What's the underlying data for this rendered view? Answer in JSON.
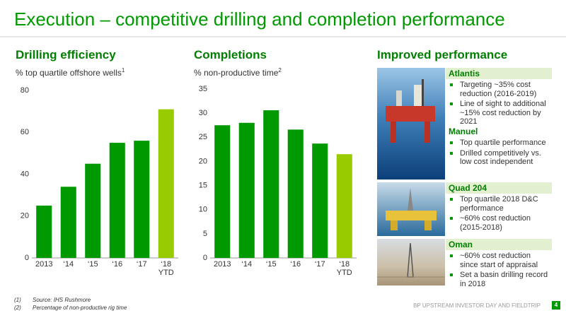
{
  "header": {
    "title": "Execution – competitive drilling and completion performance"
  },
  "chart_data": [
    {
      "type": "bar",
      "title": "Drilling efficiency",
      "subtitle": "% top quartile offshore wells",
      "subtitle_note": "1",
      "categories": [
        "2013",
        "‘14",
        "‘15",
        "‘16",
        "‘17",
        "‘18 YTD"
      ],
      "values": [
        25,
        34,
        45,
        55,
        56,
        71
      ],
      "colors": [
        "#009900",
        "#009900",
        "#009900",
        "#009900",
        "#009900",
        "#99cc00"
      ],
      "ylim": [
        0,
        80
      ],
      "yticks": [
        0,
        20,
        40,
        60,
        80
      ]
    },
    {
      "type": "bar",
      "title": "Completions",
      "subtitle": "% non-productive time",
      "subtitle_note": "2",
      "categories": [
        "2013",
        "‘14",
        "‘15",
        "‘16",
        "‘17",
        "‘18 YTD"
      ],
      "values": [
        27.5,
        28,
        30.6,
        26.6,
        23.7,
        21.5
      ],
      "colors": [
        "#009900",
        "#009900",
        "#009900",
        "#009900",
        "#009900",
        "#99cc00"
      ],
      "ylim": [
        0,
        35
      ],
      "yticks": [
        0,
        5,
        10,
        15,
        20,
        25,
        30,
        35
      ]
    }
  ],
  "panel": {
    "title": "Improved performance",
    "sections": [
      {
        "name": "Atlantis",
        "bullets": [
          "Targeting ~35% cost reduction (2016-2019)",
          "Line of sight to additional ~15% cost reduction by 2021"
        ]
      },
      {
        "name": "Manuel",
        "bullets": [
          "Top quartile performance",
          "Drilled competitively vs. low cost independent"
        ]
      },
      {
        "name": "Quad 204",
        "bullets": [
          "Top quartile 2018 D&C performance",
          "~60% cost reduction (2015-2018)"
        ]
      },
      {
        "name": "Oman",
        "bullets": [
          "~60% cost reduction since start of appraisal",
          "Set a basin drilling record in 2018"
        ]
      }
    ]
  },
  "footnotes": [
    {
      "marker": "(1)",
      "text": "Source: IHS Rushmore"
    },
    {
      "marker": "(2)",
      "text": "Percentage of non-productive rig time"
    }
  ],
  "footer": {
    "text": "BP UPSTREAM INVESTOR DAY AND FIELDTRIP",
    "page": "4"
  }
}
